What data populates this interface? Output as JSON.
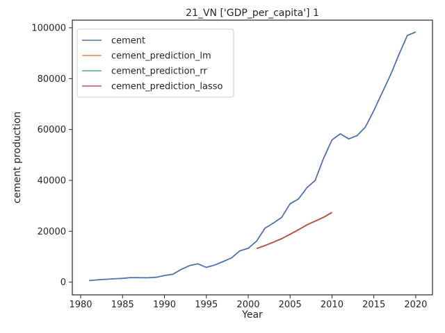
{
  "chart_data": {
    "type": "line",
    "title": "21_VN ['GDP_per_capita'] 1",
    "xlabel": "Year",
    "ylabel": "cement production",
    "xlim": [
      1979,
      2022
    ],
    "ylim": [
      -5000,
      103000
    ],
    "xticks": [
      1980,
      1985,
      1990,
      1995,
      2000,
      2005,
      2010,
      2015,
      2020
    ],
    "yticks": [
      0,
      20000,
      40000,
      60000,
      80000,
      100000
    ],
    "grid": false,
    "legend_position": "top-left",
    "series": [
      {
        "name": "cement",
        "color": "#4c72b0",
        "x": [
          1981,
          1982,
          1983,
          1984,
          1985,
          1986,
          1987,
          1988,
          1989,
          1990,
          1991,
          1992,
          1993,
          1994,
          1995,
          1996,
          1997,
          1998,
          1999,
          2000,
          2001,
          2002,
          2003,
          2004,
          2005,
          2006,
          2007,
          2008,
          2009,
          2010,
          2011,
          2012,
          2013,
          2014,
          2015,
          2016,
          2017,
          2018,
          2019,
          2020
        ],
        "y": [
          600,
          900,
          1100,
          1300,
          1500,
          1800,
          1750,
          1700,
          1900,
          2600,
          3100,
          5000,
          6500,
          7200,
          5800,
          6700,
          8100,
          9500,
          12300,
          13300,
          16100,
          21200,
          23200,
          25500,
          30800,
          32700,
          37100,
          40000,
          48700,
          55900,
          58300,
          56300,
          57600,
          61000,
          67500,
          74500,
          81500,
          89500,
          97000,
          98300
        ]
      },
      {
        "name": "cement_prediction_lm",
        "color": "#dd8452",
        "x": [
          2001,
          2002,
          2003,
          2004,
          2005,
          2006,
          2007,
          2008,
          2009,
          2010
        ],
        "y": [
          13200,
          14400,
          15700,
          17100,
          18800,
          20600,
          22500,
          24000,
          25500,
          27400
        ]
      },
      {
        "name": "cement_prediction_rr",
        "color": "#55a868",
        "x": [
          2001,
          2002,
          2003,
          2004,
          2005,
          2006,
          2007,
          2008,
          2009,
          2010
        ],
        "y": [
          13200,
          14400,
          15700,
          17100,
          18800,
          20600,
          22500,
          24000,
          25500,
          27400
        ]
      },
      {
        "name": "cement_prediction_lasso",
        "color": "#c44e52",
        "x": [
          2001,
          2002,
          2003,
          2004,
          2005,
          2006,
          2007,
          2008,
          2009,
          2010
        ],
        "y": [
          13200,
          14400,
          15700,
          17100,
          18800,
          20600,
          22500,
          24000,
          25500,
          27400
        ]
      }
    ]
  }
}
